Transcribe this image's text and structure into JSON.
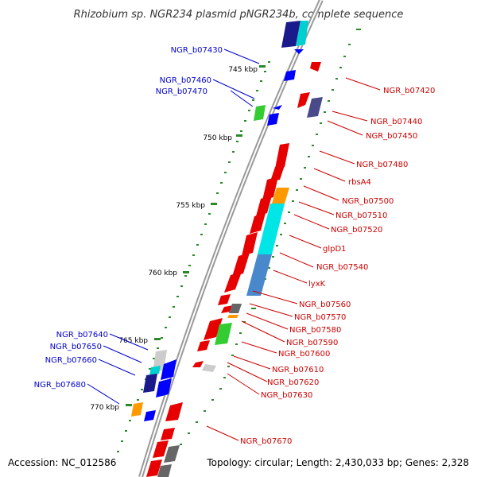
{
  "title": "Rhizobium sp. NGR234 plasmid pNGR234b, complete sequence",
  "footer": {
    "accession": "Accession: NC_012586",
    "topology": "Topology: circular; Length: 2,430,033 bp; Genes: 2,328"
  },
  "ticks": [
    {
      "label": "745 kbp"
    },
    {
      "label": "750 kbp"
    },
    {
      "label": "755 kbp"
    },
    {
      "label": "760 kbp"
    },
    {
      "label": "765 kbp"
    },
    {
      "label": "770 kbp"
    }
  ],
  "left_labels": [
    {
      "name": "NGR_b07430"
    },
    {
      "name": "NGR_b07460"
    },
    {
      "name": "NGR_b07470"
    },
    {
      "name": "NGR_b07640"
    },
    {
      "name": "NGR_b07650"
    },
    {
      "name": "NGR_b07660"
    },
    {
      "name": "NGR_b07680"
    }
  ],
  "right_labels": [
    {
      "name": "NGR_b07420"
    },
    {
      "name": "NGR_b07440"
    },
    {
      "name": "NGR_b07450"
    },
    {
      "name": "NGR_b07480"
    },
    {
      "name": "rbsA4"
    },
    {
      "name": "NGR_b07500"
    },
    {
      "name": "NGR_b07510"
    },
    {
      "name": "NGR_b07520"
    },
    {
      "name": "glpD1"
    },
    {
      "name": "NGR_b07540"
    },
    {
      "name": "lyxK"
    },
    {
      "name": "NGR_b07560"
    },
    {
      "name": "NGR_b07570"
    },
    {
      "name": "NGR_b07580"
    },
    {
      "name": "NGR_b07590"
    },
    {
      "name": "NGR_b07600"
    },
    {
      "name": "NGR_b07610"
    },
    {
      "name": "NGR_b07620"
    },
    {
      "name": "NGR_b07630"
    },
    {
      "name": "NGR_b07670"
    }
  ],
  "colors": {
    "forward_gene": "#e60000",
    "reverse_gene": "#0000ff",
    "tick_mark": "#2a8a2a",
    "backbone": "#9a9a9a",
    "right_label": "#cc0000",
    "left_label": "#0000cc",
    "cyan_feature": "#00e5e5",
    "orange_feature": "#ff9900",
    "green_feature": "#33cc33",
    "grey_feature": "#777777"
  }
}
